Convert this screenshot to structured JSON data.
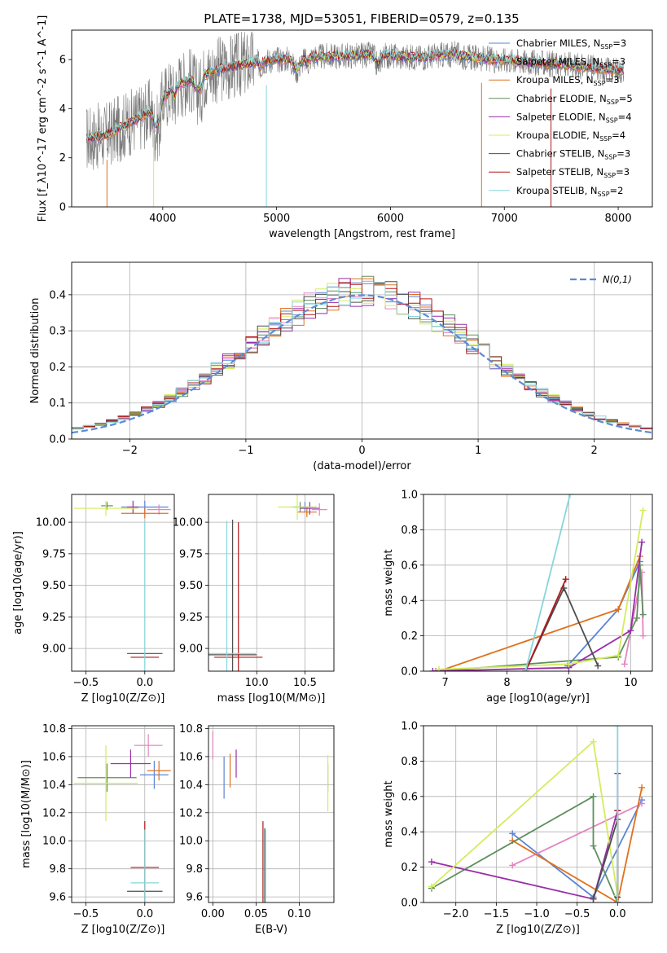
{
  "title": "PLATE=1738, MJD=53051, FIBERID=0579, z=0.135",
  "colors": {
    "Chabrier MILES": "#5b84d6",
    "Salpeter MILES": "#e584c0",
    "Kroupa MILES": "#e0701c",
    "Chabrier ELODIE": "#5e8f5e",
    "Salpeter ELODIE": "#9a2ea8",
    "Kroupa ELODIE": "#d4ec5c",
    "Chabrier STELIB": "#4e4e4e",
    "Salpeter STELIB": "#b0181a",
    "Kroupa STELIB": "#86d6da",
    "data": "#7a7a7a",
    "gauss": "#5b8bd6"
  },
  "chart_data": [
    {
      "id": "spectrum",
      "type": "line",
      "title": "PLATE=1738, MJD=53051, FIBERID=0579, z=0.135",
      "xlabel": "wavelength [Angstrom, rest frame]",
      "ylabel": "Flux [f_λ10^-17 erg cm^-2 s^-1 A^-1]",
      "xlim": [
        3200,
        8300
      ],
      "ylim": [
        0,
        7.2
      ],
      "xticks": [
        "4000",
        "5000",
        "6000",
        "7000",
        "8000"
      ],
      "yticks": [
        "0",
        "2",
        "4",
        "6"
      ],
      "grid": false,
      "legend_position": "right",
      "x": [
        3350,
        3500,
        3700,
        3900,
        4000,
        4100,
        4300,
        4500,
        4800,
        5000,
        5300,
        5600,
        5900,
        6100,
        6300,
        6500,
        6700,
        6900,
        7100,
        7300,
        7500,
        7700,
        7900,
        8050
      ],
      "model_values": [
        2.8,
        2.9,
        3.4,
        3.9,
        4.4,
        4.9,
        5.3,
        5.6,
        5.9,
        6.0,
        6.1,
        6.15,
        6.2,
        6.1,
        6.1,
        6.2,
        6.1,
        6.0,
        5.95,
        5.85,
        5.8,
        5.7,
        5.6,
        5.55
      ],
      "series": [
        {
          "name": "Chabrier MILES, N_SSP=3"
        },
        {
          "name": "Salpeter MILES, N_SSP=3"
        },
        {
          "name": "Kroupa MILES, N_SSP=3"
        },
        {
          "name": "Chabrier ELODIE, N_SSP=5"
        },
        {
          "name": "Salpeter ELODIE, N_SSP=4"
        },
        {
          "name": "Kroupa ELODIE, N_SSP=4"
        },
        {
          "name": "Chabrier STELIB, N_SSP=3"
        },
        {
          "name": "Salpeter STELIB, N_SSP=3"
        },
        {
          "name": "Kroupa STELIB, N_SSP=2"
        }
      ]
    },
    {
      "id": "residuals",
      "type": "line",
      "xlabel": "(data-model)/error",
      "ylabel": "Normed distribution",
      "xlim": [
        -2.5,
        2.5
      ],
      "ylim": [
        0,
        0.49
      ],
      "xticks": [
        "−2",
        "−1",
        "0",
        "1",
        "2"
      ],
      "yticks": [
        "0.0",
        "0.1",
        "0.2",
        "0.3",
        "0.4"
      ],
      "grid": true,
      "legend_position": "top-right",
      "legend": "N(0,1)"
    },
    {
      "id": "age-vs-Z",
      "type": "scatter",
      "xlabel": "Z [log10(Z/Z⊙)]",
      "ylabel": "age  [log10(age/yr)]",
      "xlim": [
        -0.62,
        0.25
      ],
      "ylim": [
        8.82,
        10.22
      ],
      "xticks": [
        "−0.5",
        "0.0"
      ],
      "yticks": [
        "9.00",
        "9.25",
        "9.50",
        "9.75",
        "10.00"
      ],
      "grid": true,
      "points": [
        {
          "model": "Chabrier MILES",
          "x": 0.0,
          "y": 10.12,
          "xerr": 0.2,
          "yerr": 0.05
        },
        {
          "model": "Salpeter MILES",
          "x": 0.12,
          "y": 10.1,
          "xerr": 0.1,
          "yerr": 0.04
        },
        {
          "model": "Kroupa MILES",
          "x": 0.0,
          "y": 10.07,
          "xerr": 0.2,
          "yerr": 0.04
        },
        {
          "model": "Chabrier ELODIE",
          "x": -0.32,
          "y": 10.13,
          "xerr": 0.05,
          "yerr": 0.03
        },
        {
          "model": "Salpeter ELODIE",
          "x": -0.1,
          "y": 10.12,
          "xerr": 0.05,
          "yerr": 0.05
        },
        {
          "model": "Kroupa ELODIE",
          "x": -0.33,
          "y": 10.11,
          "xerr": 0.27,
          "yerr": 0.06
        },
        {
          "model": "Chabrier STELIB",
          "x": 0.0,
          "y": 8.96,
          "xerr": 0.15,
          "yerr": 0.0
        },
        {
          "model": "Salpeter STELIB",
          "x": 0.0,
          "y": 8.93,
          "xerr": 0.12,
          "yerr": 0.0
        },
        {
          "model": "Kroupa STELIB",
          "x": 0.0,
          "y": 8.96,
          "xerr": 0.0,
          "yerr": 1.05
        }
      ]
    },
    {
      "id": "age-vs-mass",
      "type": "scatter",
      "xlabel": "mass [log10(M/M⊙)]",
      "ylabel": "",
      "xlim": [
        9.5,
        10.8
      ],
      "ylim": [
        8.82,
        10.22
      ],
      "xticks": [
        "10.0",
        "10.5"
      ],
      "yticks": [
        "9.00",
        "9.25",
        "9.50",
        "9.75",
        "10.00"
      ],
      "grid": true,
      "points": [
        {
          "model": "Chabrier MILES",
          "x": 10.5,
          "y": 10.12,
          "xerr": 0.12,
          "yerr": 0.04
        },
        {
          "model": "Salpeter MILES",
          "x": 10.65,
          "y": 10.1,
          "xerr": 0.08,
          "yerr": 0.05
        },
        {
          "model": "Kroupa MILES",
          "x": 10.52,
          "y": 10.08,
          "xerr": 0.1,
          "yerr": 0.04
        },
        {
          "model": "Chabrier ELODIE",
          "x": 10.45,
          "y": 10.12,
          "xerr": 0.08,
          "yerr": 0.04
        },
        {
          "model": "Salpeter ELODIE",
          "x": 10.55,
          "y": 10.11,
          "xerr": 0.1,
          "yerr": 0.05
        },
        {
          "model": "Kroupa ELODIE",
          "x": 10.42,
          "y": 10.12,
          "xerr": 0.2,
          "yerr": 0.1
        },
        {
          "model": "Chabrier STELIB",
          "x": 9.75,
          "y": 8.95,
          "xerr": 0.25,
          "yerr": 1.07
        },
        {
          "model": "Salpeter STELIB",
          "x": 9.81,
          "y": 8.93,
          "xerr": 0.25,
          "yerr": 1.07
        },
        {
          "model": "Kroupa STELIB",
          "x": 9.69,
          "y": 8.96,
          "xerr": 0.3,
          "yerr": 1.05
        }
      ]
    },
    {
      "id": "weight-vs-age",
      "type": "line",
      "xlabel": "age  [log10(age/yr)]",
      "ylabel": "mass weight",
      "xlim": [
        6.65,
        10.35
      ],
      "ylim": [
        0.0,
        1.0
      ],
      "xticks": [
        "7",
        "8",
        "9",
        "10"
      ],
      "yticks": [
        "0.0",
        "0.2",
        "0.4",
        "0.6",
        "0.8",
        "1.0"
      ],
      "grid": true,
      "series": [
        {
          "model": "Chabrier MILES",
          "x": [
            8.98,
            9.8,
            10.15
          ],
          "y": [
            0.03,
            0.35,
            0.62
          ]
        },
        {
          "model": "Salpeter MILES",
          "x": [
            9.9,
            10.18,
            10.2
          ],
          "y": [
            0.04,
            0.56,
            0.2
          ]
        },
        {
          "model": "Kroupa MILES",
          "x": [
            6.9,
            9.8,
            10.15
          ],
          "y": [
            0.0,
            0.35,
            0.65
          ]
        },
        {
          "model": "Chabrier ELODIE",
          "x": [
            6.85,
            9.8,
            10.1,
            10.15,
            10.2
          ],
          "y": [
            0.0,
            0.08,
            0.3,
            0.6,
            0.32
          ]
        },
        {
          "model": "Salpeter ELODIE",
          "x": [
            6.8,
            9.0,
            10.0,
            10.18
          ],
          "y": [
            0.0,
            0.02,
            0.23,
            0.73
          ]
        },
        {
          "model": "Kroupa ELODIE",
          "x": [
            6.9,
            9.0,
            9.8,
            10.2
          ],
          "y": [
            0.01,
            0.04,
            0.09,
            0.91
          ]
        },
        {
          "model": "Chabrier STELIB",
          "x": [
            8.3,
            8.92,
            9.47
          ],
          "y": [
            0.0,
            0.47,
            0.03
          ]
        },
        {
          "model": "Salpeter STELIB",
          "x": [
            8.3,
            8.95
          ],
          "y": [
            0.0,
            0.52
          ]
        },
        {
          "model": "Kroupa STELIB",
          "x": [
            8.3,
            9.02
          ],
          "y": [
            0.0,
            1.0
          ]
        }
      ]
    },
    {
      "id": "mass-vs-Z",
      "type": "scatter",
      "xlabel": "Z [log10(Z/Z⊙)]",
      "ylabel": "mass [log10(M/M⊙)]",
      "xlim": [
        -0.62,
        0.25
      ],
      "ylim": [
        9.56,
        10.82
      ],
      "xticks": [
        "−0.5",
        "0.0"
      ],
      "yticks": [
        "9.6",
        "9.8",
        "10.0",
        "10.2",
        "10.4",
        "10.6",
        "10.8"
      ],
      "grid": true,
      "points": [
        {
          "model": "Chabrier MILES",
          "x": 0.08,
          "y": 10.47,
          "xerr": 0.12,
          "yerr": 0.1
        },
        {
          "model": "Salpeter MILES",
          "x": 0.03,
          "y": 10.68,
          "xerr": 0.12,
          "yerr": 0.08
        },
        {
          "model": "Kroupa MILES",
          "x": 0.12,
          "y": 10.5,
          "xerr": 0.1,
          "yerr": 0.07
        },
        {
          "model": "Chabrier ELODIE",
          "x": -0.32,
          "y": 10.45,
          "xerr": 0.25,
          "yerr": 0.1
        },
        {
          "model": "Salpeter ELODIE",
          "x": -0.12,
          "y": 10.55,
          "xerr": 0.17,
          "yerr": 0.1
        },
        {
          "model": "Kroupa ELODIE",
          "x": -0.33,
          "y": 10.41,
          "xerr": 0.27,
          "yerr": 0.27
        },
        {
          "model": "Chabrier STELIB",
          "x": 0.0,
          "y": 9.64,
          "xerr": 0.15,
          "yerr": 0.0
        },
        {
          "model": "Salpeter STELIB",
          "x": 0.0,
          "y": 9.81,
          "xerr": 0.12,
          "yerr": 0.33
        },
        {
          "model": "Kroupa STELIB",
          "x": 0.0,
          "y": 9.7,
          "xerr": 0.12,
          "yerr": 0.38
        }
      ]
    },
    {
      "id": "mass-vs-ebv",
      "type": "scatter",
      "xlabel": "E(B-V)",
      "ylabel": "",
      "xlim": [
        -0.005,
        0.14
      ],
      "ylim": [
        9.56,
        10.82
      ],
      "xticks": [
        "0.00",
        "0.05",
        "0.10"
      ],
      "yticks": [
        "9.6",
        "9.8",
        "10.0",
        "10.2",
        "10.4",
        "10.6",
        "10.8"
      ],
      "grid": true,
      "points": [
        {
          "model": "Chabrier MILES",
          "x": 0.013,
          "y": 10.45,
          "yerr": 0.15
        },
        {
          "model": "Salpeter MILES",
          "x": 0.0,
          "y": 10.68,
          "yerr": 0.1
        },
        {
          "model": "Kroupa MILES",
          "x": 0.02,
          "y": 10.5,
          "yerr": 0.12
        },
        {
          "model": "Chabrier ELODIE",
          "x": 0.133,
          "y": 10.45,
          "yerr": 0.1
        },
        {
          "model": "Salpeter ELODIE",
          "x": 0.027,
          "y": 10.55,
          "yerr": 0.1
        },
        {
          "model": "Kroupa ELODIE",
          "x": 0.133,
          "y": 10.41,
          "yerr": 0.2
        },
        {
          "model": "Chabrier STELIB",
          "x": 0.06,
          "y": 9.64,
          "yerr": 0.45
        },
        {
          "model": "Salpeter STELIB",
          "x": 0.058,
          "y": 9.81,
          "yerr": 0.33
        },
        {
          "model": "Kroupa STELIB",
          "x": 0.061,
          "y": 9.7,
          "yerr": 0.38
        }
      ]
    },
    {
      "id": "weight-vs-Z",
      "type": "line",
      "xlabel": "Z [log10(Z/Z⊙)]",
      "ylabel": "mass weight",
      "xlim": [
        -2.4,
        0.43
      ],
      "ylim": [
        0.0,
        1.0
      ],
      "xticks": [
        "−2.0",
        "−1.5",
        "−1.0",
        "−0.5",
        "0.0"
      ],
      "yticks": [
        "0.0",
        "0.2",
        "0.4",
        "0.6",
        "0.8",
        "1.0"
      ],
      "grid": true,
      "series": [
        {
          "model": "Chabrier MILES",
          "x": [
            -1.3,
            -0.3,
            0.3
          ],
          "y": [
            0.39,
            0.03,
            0.58
          ]
        },
        {
          "model": "Salpeter MILES",
          "x": [
            -1.3,
            0.3
          ],
          "y": [
            0.21,
            0.56
          ]
        },
        {
          "model": "Kroupa MILES",
          "x": [
            -1.3,
            0.0,
            0.3
          ],
          "y": [
            0.35,
            0.0,
            0.65
          ]
        },
        {
          "model": "Chabrier ELODIE",
          "x": [
            -2.3,
            -0.3,
            -0.3,
            -0.0
          ],
          "y": [
            0.08,
            0.6,
            0.32,
            0.0
          ]
        },
        {
          "model": "Salpeter ELODIE",
          "x": [
            -2.3,
            -0.3,
            0.0,
            0.0
          ],
          "y": [
            0.23,
            0.02,
            0.52,
            0.73
          ]
        },
        {
          "model": "Kroupa ELODIE",
          "x": [
            -2.3,
            -0.3,
            0.0
          ],
          "y": [
            0.09,
            0.91,
            0.04
          ]
        },
        {
          "model": "Chabrier STELIB",
          "x": [
            -0.3,
            0.0,
            0.0
          ],
          "y": [
            0.02,
            0.47,
            0.03
          ]
        },
        {
          "model": "Salpeter STELIB",
          "x": [
            0.0,
            0.0
          ],
          "y": [
            0.0,
            0.52
          ]
        },
        {
          "model": "Kroupa STELIB",
          "x": [
            0.0,
            0.0
          ],
          "y": [
            0.0,
            1.0
          ]
        }
      ]
    }
  ]
}
